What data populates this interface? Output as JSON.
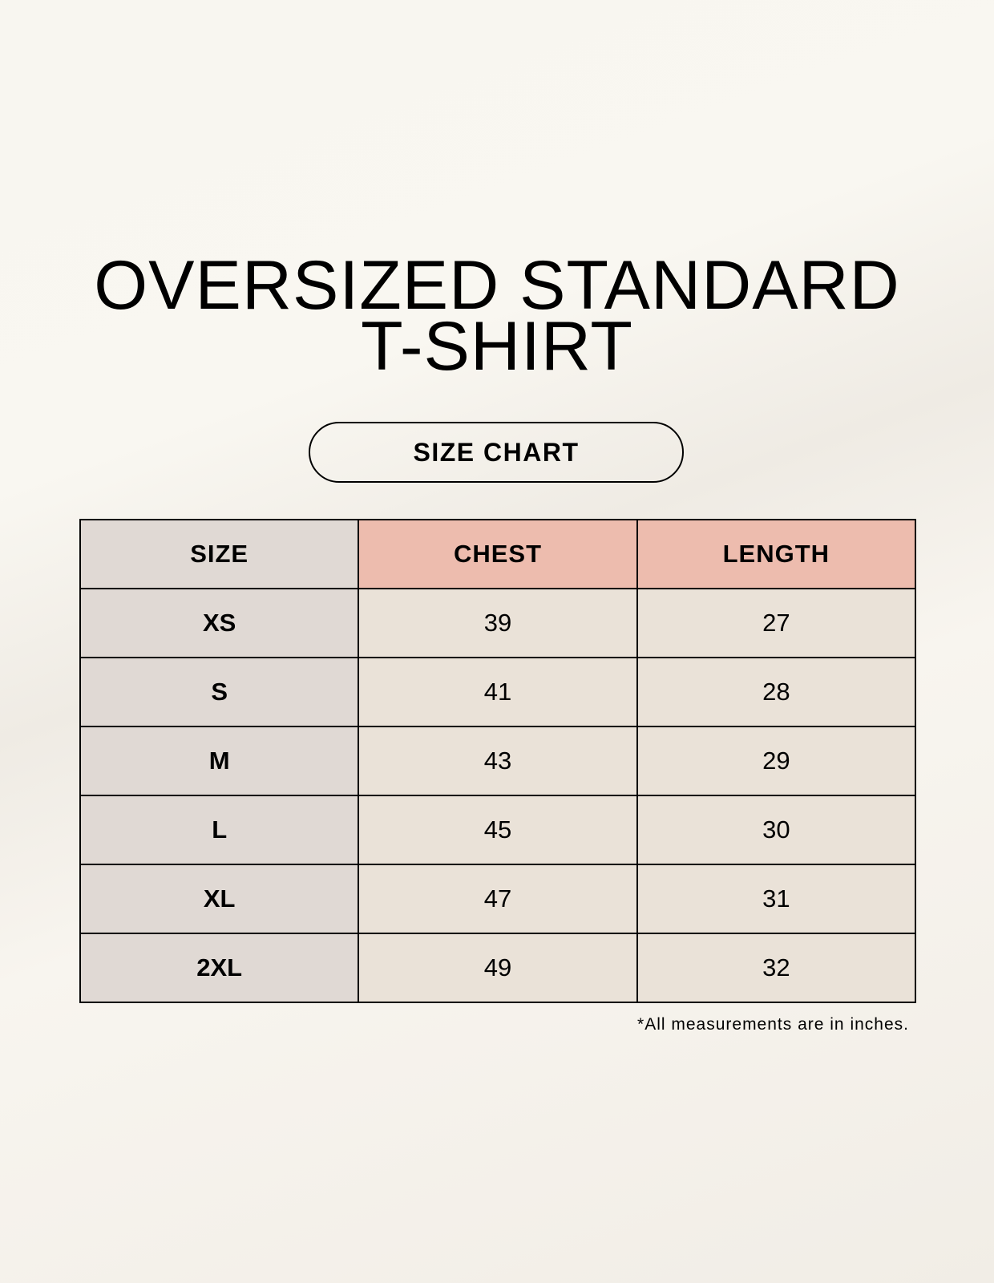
{
  "title": {
    "line1": "OVERSIZED STANDARD",
    "line2": "T-SHIRT"
  },
  "badge": "SIZE CHART",
  "table": {
    "headers": [
      "SIZE",
      "CHEST",
      "LENGTH"
    ],
    "rows": [
      [
        "XS",
        "39",
        "27"
      ],
      [
        "S",
        "41",
        "28"
      ],
      [
        "M",
        "43",
        "29"
      ],
      [
        "L",
        "45",
        "30"
      ],
      [
        "XL",
        "47",
        "31"
      ],
      [
        "2XL",
        "49",
        "32"
      ]
    ]
  },
  "footnote": "*All measurements are in inches.",
  "colors": {
    "size_column": "#e0d9d4",
    "measure_header": "#edbcae",
    "measure_cells": "#eae2d8"
  }
}
